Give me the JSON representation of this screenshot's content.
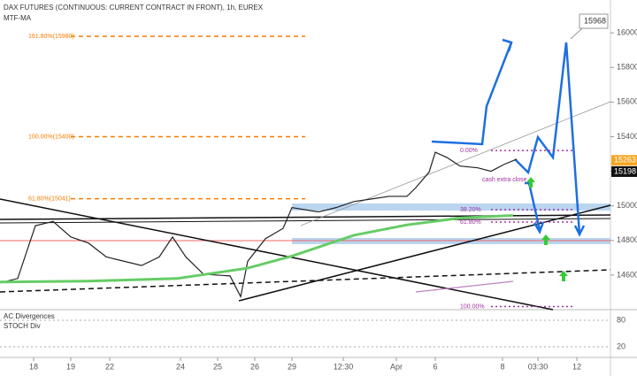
{
  "chart_data": {
    "type": "line",
    "title": "DAX FUTURES (CONTINUOUS: CURRENT CONTRACT IN FRONT), 1h, EUREX",
    "indicator": "MTF-MA",
    "xlim": [
      0,
      172
    ],
    "ylim": [
      14400,
      16190
    ],
    "xticks": [
      {
        "value": 9.5,
        "label": "18"
      },
      {
        "value": 20,
        "label": "19"
      },
      {
        "value": 31,
        "label": "22"
      },
      {
        "value": 51,
        "label": "24"
      },
      {
        "value": 61.5,
        "label": "25"
      },
      {
        "value": 72,
        "label": "26"
      },
      {
        "value": 82.5,
        "label": "29"
      },
      {
        "value": 97,
        "label": "12:30"
      },
      {
        "value": 112,
        "label": "Apr"
      },
      {
        "value": 123,
        "label": "6"
      },
      {
        "value": 142,
        "label": "8"
      },
      {
        "value": 152,
        "label": "03:30"
      },
      {
        "value": 163,
        "label": "12"
      }
    ],
    "yticks": [
      14600,
      14800,
      15000,
      15200,
      15400,
      15600,
      15800,
      16000
    ],
    "series": [
      {
        "color": "#222222",
        "x": [
          0,
          5,
          10,
          15,
          20,
          25,
          30,
          35,
          40,
          45,
          48.75,
          52.5,
          57.5,
          65,
          68,
          70,
          75,
          80,
          82.5,
          90,
          95,
          100,
          105,
          110,
          115,
          117.5,
          121.25,
          123,
          126.25,
          130,
          135,
          138.75,
          142.5,
          146
        ],
        "values": [
          14555,
          14580,
          14885,
          14910,
          14820,
          14785,
          14705,
          14680,
          14655,
          14705,
          14820,
          14705,
          14605,
          14595,
          14475,
          14680,
          14810,
          14870,
          14990,
          14965,
          14990,
          15025,
          15040,
          15055,
          15055,
          15105,
          15195,
          15310,
          15280,
          15230,
          15220,
          15200,
          15240,
          15270
        ]
      },
      {
        "color": "#66cc66",
        "x": [
          0,
          25,
          50,
          70,
          82.5,
          100,
          115,
          130,
          145
        ],
        "values": [
          14560,
          14565,
          14580,
          14640,
          14710,
          14830,
          14890,
          14930,
          14945
        ]
      }
    ],
    "levels": [
      {
        "label": "161.80%(15980)",
        "value": 15980
      },
      {
        "label": "100.00%(15400)",
        "value": 15400
      },
      {
        "label": "61.80%(15041)",
        "value": 15041
      }
    ],
    "fib_right": [
      {
        "label": "0.00%",
        "value": 15320
      },
      {
        "label": "38.20%",
        "value": 14978
      },
      {
        "label": "61.80%",
        "value": 14906
      },
      {
        "label": "100.00%",
        "value": 14418
      }
    ],
    "price_tags": [
      15263,
      15198
    ],
    "callout": 15968,
    "annotation": "cash extra close",
    "oscillator": {
      "labels": [
        "AC Divergences",
        "STOCH Div"
      ],
      "ylim": [
        0,
        100
      ],
      "yticks": [
        80,
        20
      ]
    }
  }
}
